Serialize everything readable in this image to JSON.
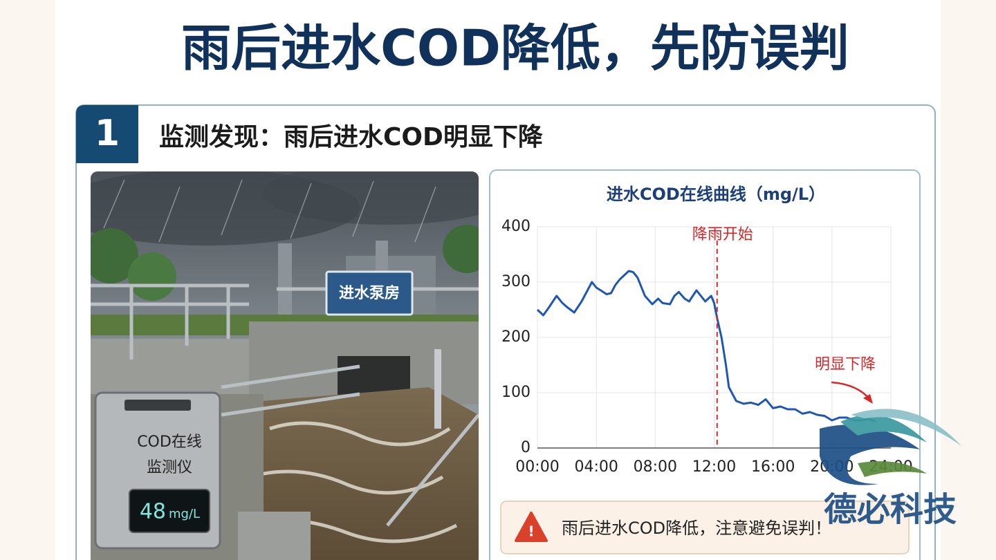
{
  "header": {
    "title": "雨后进水COD降低，先防误判"
  },
  "section": {
    "number": "1",
    "title": "监测发现：雨后进水COD明显下降"
  },
  "illustration": {
    "building_sign": "进水泵房",
    "device_line1": "COD在线",
    "device_line2": "监测仪",
    "reading": 48,
    "unit": "mg/L"
  },
  "chart_data": {
    "type": "line",
    "title": "进水COD在线曲线（mg/L）",
    "x": [
      0,
      0.4,
      0.8,
      1.3,
      1.7,
      2,
      2.5,
      3,
      3.4,
      3.7,
      4,
      4.3,
      4.7,
      5,
      5.3,
      5.6,
      6,
      6.2,
      6.5,
      6.8,
      7.3,
      7.8,
      8.2,
      8.5,
      9,
      9.3,
      9.6,
      10,
      10.3,
      10.8,
      11.1,
      11.4,
      11.8,
      12,
      12.2,
      12.5,
      12.8,
      13,
      13.3,
      13.5,
      14,
      14.5,
      15,
      15.5,
      16,
      16.5,
      17,
      17.5,
      18,
      18.5,
      19,
      19.5,
      20,
      20.5,
      21,
      21.5,
      22,
      22.5,
      23
    ],
    "series": [
      {
        "color": "#1f56b3",
        "values": [
          250,
          240,
          255,
          275,
          262,
          255,
          245,
          265,
          285,
          300,
          290,
          285,
          278,
          280,
          295,
          305,
          315,
          320,
          318,
          308,
          275,
          260,
          270,
          262,
          260,
          275,
          282,
          270,
          265,
          285,
          275,
          265,
          275,
          262,
          235,
          200,
          150,
          110,
          95,
          85,
          80,
          82,
          78,
          88,
          72,
          75,
          70,
          70,
          62,
          65,
          60,
          58,
          50,
          55,
          55,
          50,
          50,
          52,
          48
        ]
      }
    ],
    "xlim": [
      0,
      24
    ],
    "xticks": [
      {
        "value": 0,
        "label": "00:00"
      },
      {
        "value": 4,
        "label": "04:00"
      },
      {
        "value": 8,
        "label": "08:00"
      },
      {
        "value": 12,
        "label": "12:00"
      },
      {
        "value": 16,
        "label": "16:00"
      },
      {
        "value": 20,
        "label": "20:00"
      },
      {
        "value": 24,
        "label": "24:00"
      }
    ],
    "ylim": [
      0,
      400
    ],
    "yticks": [
      0,
      100,
      200,
      300,
      400
    ],
    "grid": true,
    "rain_start": {
      "x": 12.2,
      "label": "降雨开始",
      "color": "#d62828"
    },
    "drop_label": "明显下降"
  },
  "warning": {
    "text": "雨后进水COD降低，注意避免误判！"
  },
  "logo": {
    "text": "德必科技"
  }
}
